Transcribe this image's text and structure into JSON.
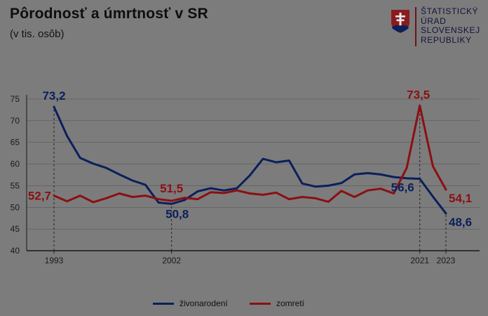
{
  "header": {
    "title": "Pôrodnosť a úmrtnosť v SR",
    "subtitle": "(v tis. osôb)"
  },
  "logo": {
    "lines": [
      "ŠTATISTICKÝ",
      "ÚRAD",
      "SLOVENSKEJ",
      "REPUBLIKY"
    ],
    "icon": "slovak-coat-of-arms-icon",
    "color_red": "#8b1a1e",
    "color_blue": "#0b1f5c"
  },
  "colors": {
    "background": "#7c7c7c",
    "births": "#0b1f5c",
    "deaths": "#8c0f12",
    "axis": "#1a1a1a",
    "grid": "#8e8e8e"
  },
  "chart_data": {
    "type": "line",
    "x": [
      1993,
      1994,
      1995,
      1996,
      1997,
      1998,
      1999,
      2000,
      2001,
      2002,
      2003,
      2004,
      2005,
      2006,
      2007,
      2008,
      2009,
      2010,
      2011,
      2012,
      2013,
      2014,
      2015,
      2016,
      2017,
      2018,
      2019,
      2020,
      2021,
      2022,
      2023
    ],
    "series": [
      {
        "name": "živonarodení",
        "values": [
          73.2,
          66.5,
          61.4,
          60.1,
          59.1,
          57.6,
          56.2,
          55.2,
          51.1,
          50.8,
          51.7,
          53.7,
          54.4,
          53.9,
          54.4,
          57.4,
          61.2,
          60.4,
          60.8,
          55.5,
          54.8,
          55.0,
          55.6,
          57.6,
          57.9,
          57.6,
          57.0,
          56.7,
          56.6,
          52.5,
          48.6
        ]
      },
      {
        "name": "zomretí",
        "values": [
          52.7,
          51.4,
          52.7,
          51.2,
          52.1,
          53.2,
          52.4,
          52.7,
          51.9,
          51.5,
          52.2,
          51.9,
          53.5,
          53.3,
          53.9,
          53.2,
          52.9,
          53.4,
          51.9,
          52.4,
          52.1,
          51.3,
          53.8,
          52.4,
          53.9,
          54.3,
          53.2,
          59.1,
          73.5,
          59.5,
          54.1
        ]
      }
    ],
    "annotations": [
      {
        "x": 1993,
        "series": "živonarodení",
        "label": "73,2"
      },
      {
        "x": 1993,
        "series": "zomretí",
        "label": "52,7"
      },
      {
        "x": 2002,
        "series": "živonarodení",
        "label": "50,8"
      },
      {
        "x": 2002,
        "series": "zomretí",
        "label": "51,5"
      },
      {
        "x": 2021,
        "series": "živonarodení",
        "label": "56,6"
      },
      {
        "x": 2021,
        "series": "zomretí",
        "label": "73,5"
      },
      {
        "x": 2023,
        "series": "živonarodení",
        "label": "48,6"
      },
      {
        "x": 2023,
        "series": "zomretí",
        "label": "54,1"
      }
    ],
    "x_ticks": [
      1993,
      2002,
      2021,
      2023
    ],
    "x_tick_labels": [
      "1993",
      "2002",
      "2021",
      "2023"
    ],
    "y_ticks": [
      40,
      45,
      50,
      55,
      60,
      65,
      70,
      75
    ],
    "ylim": [
      40,
      75
    ],
    "xlim": [
      1993,
      2023
    ],
    "grid": false,
    "reference_lines_at_x": [
      1993,
      2002,
      2021,
      2023
    ],
    "legend_position": "bottom"
  }
}
